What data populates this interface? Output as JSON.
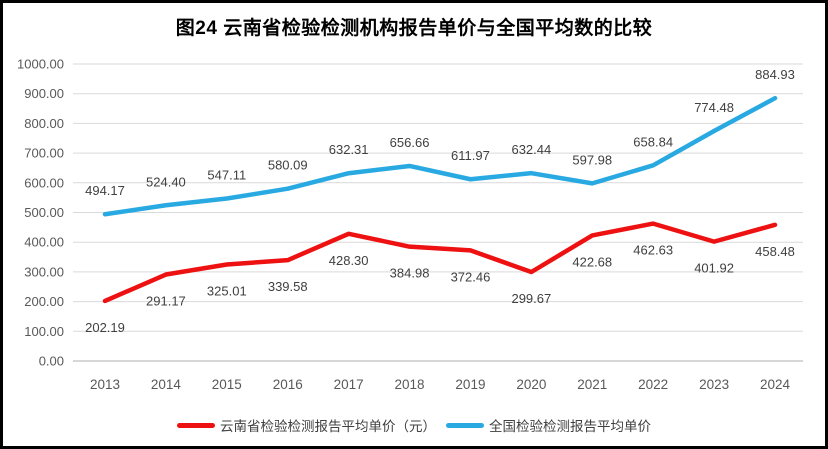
{
  "title": "图24 云南省检验检测机构报告单价与全国平均数的比较",
  "chart_data": {
    "type": "line",
    "categories": [
      "2013",
      "2014",
      "2015",
      "2016",
      "2017",
      "2018",
      "2019",
      "2020",
      "2021",
      "2022",
      "2023",
      "2024"
    ],
    "series": [
      {
        "id": "yunnan",
        "name": "云南省检验检测报告平均单价（元）",
        "color": "#ee1111",
        "label_position": "below",
        "values": [
          202.19,
          291.17,
          325.01,
          339.58,
          428.3,
          384.98,
          372.46,
          299.67,
          422.68,
          462.63,
          401.92,
          458.48
        ]
      },
      {
        "id": "national",
        "name": "全国检验检测报告平均单价",
        "color": "#29a9e1",
        "label_position": "above",
        "values": [
          494.17,
          524.4,
          547.11,
          580.09,
          632.31,
          656.66,
          611.97,
          632.44,
          597.98,
          658.84,
          774.48,
          884.93
        ]
      }
    ],
    "ylim": [
      0,
      1000
    ],
    "ytick_step": 100,
    "ytick_decimals": 2,
    "grid": true,
    "legend_position": "bottom"
  },
  "colors": {
    "grid": "#d9d9d9",
    "axis_line": "#bfbfbf",
    "tick_label": "#595959",
    "data_label": "#404040",
    "background": "#ffffff",
    "frame_border": "#000000"
  }
}
